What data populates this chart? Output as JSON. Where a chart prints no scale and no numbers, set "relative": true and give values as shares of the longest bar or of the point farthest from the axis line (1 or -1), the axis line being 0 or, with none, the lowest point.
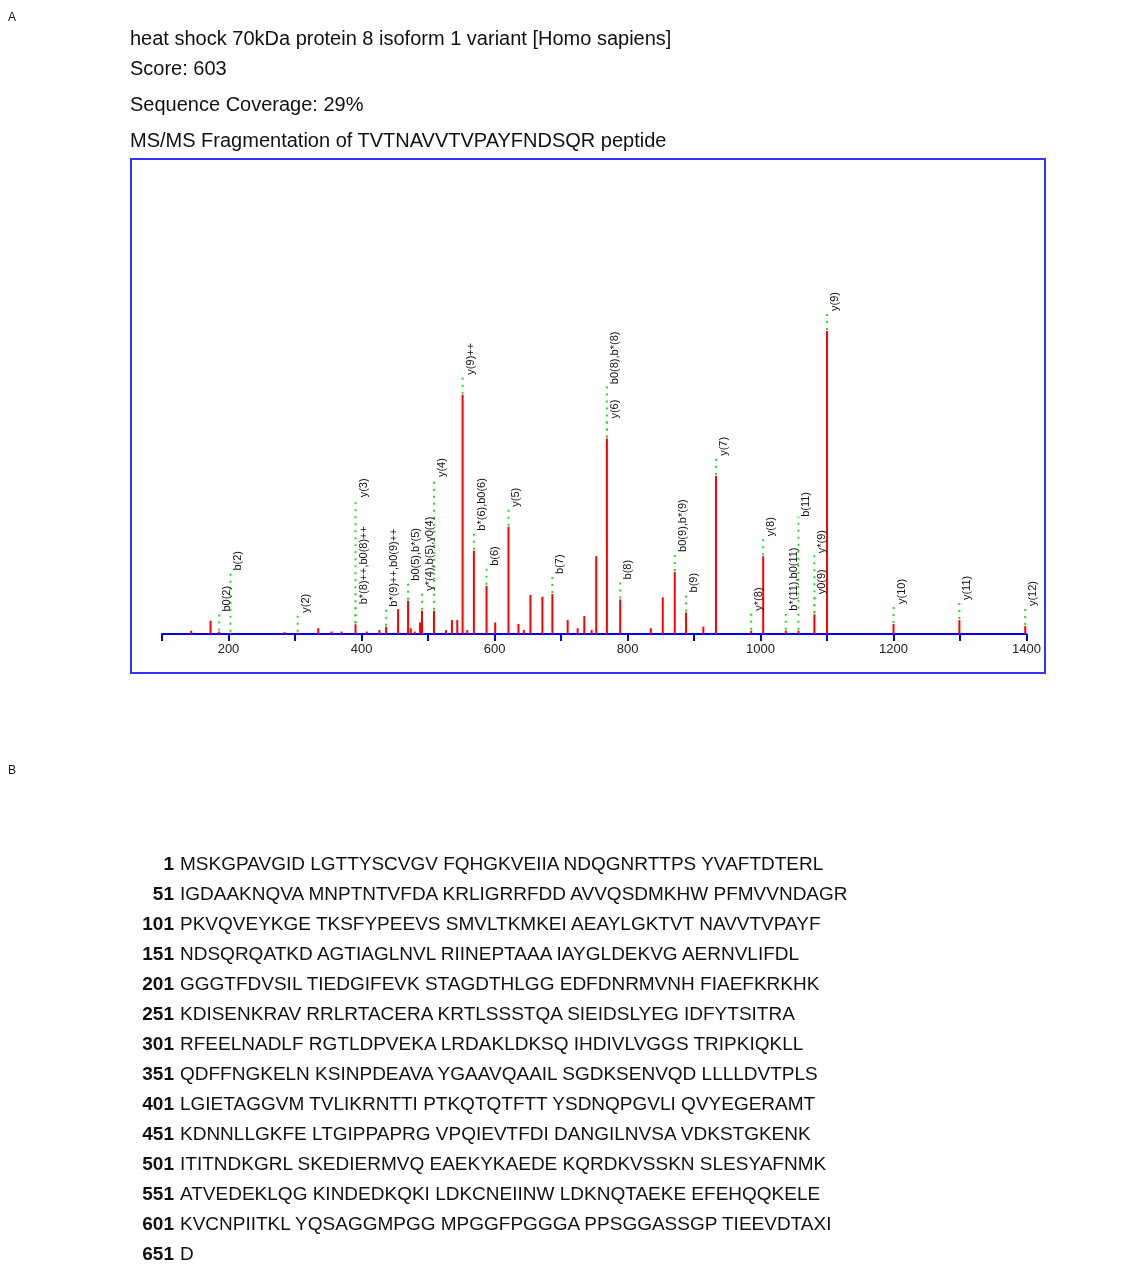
{
  "chart_data": {
    "type": "bar",
    "title": "heat shock 70kDa protein 8 isoform 1 variant [Homo sapiens]",
    "relative": true,
    "color": "#ff0000",
    "x": [
      144,
      173,
      186,
      203,
      284,
      304,
      335,
      355,
      370,
      391,
      408,
      427,
      437,
      455,
      470,
      474,
      480,
      488,
      491,
      509,
      527,
      536,
      544,
      552,
      559,
      569,
      588,
      601,
      621,
      636,
      644,
      654,
      672,
      687,
      710,
      725,
      735,
      746,
      753,
      769,
      789,
      835,
      853,
      871,
      888,
      914,
      933,
      986,
      1004,
      1038,
      1057,
      1081,
      1100,
      1200,
      1299,
      1398
    ],
    "values": [
      0.011,
      0.044,
      0.008,
      0.004,
      0.006,
      0.004,
      0.019,
      0.008,
      0.008,
      0.032,
      0.008,
      0.013,
      0.024,
      0.082,
      0.11,
      0.019,
      0.008,
      0.038,
      0.077,
      0.077,
      0.013,
      0.046,
      0.046,
      0.79,
      0.013,
      0.275,
      0.159,
      0.038,
      0.354,
      0.033,
      0.013,
      0.129,
      0.123,
      0.132,
      0.046,
      0.019,
      0.059,
      0.013,
      0.257,
      0.645,
      0.114,
      0.019,
      0.121,
      0.205,
      0.071,
      0.024,
      0.522,
      0.011,
      0.257,
      0.011,
      0.011,
      0.065,
      1,
      0.033,
      0.046,
      0.026
    ],
    "xlim": [
      100,
      1400
    ],
    "xticks": [
      {
        "value": 100,
        "label": null
      },
      200,
      {
        "value": 300,
        "label": null
      },
      400,
      {
        "value": 500,
        "label": null
      },
      600,
      {
        "value": 700,
        "label": null
      },
      800,
      {
        "value": 900,
        "label": null
      },
      1000,
      {
        "value": 1100,
        "label": null
      },
      1200,
      {
        "value": 1300,
        "label": null
      },
      1400
    ],
    "annotations": [
      "A",
      "Score: 603",
      "Sequence Coverage: 29%",
      "MS/MS Fragmentation of TVTNAVVTVPAYFNDSQR peptide",
      {
        "text": "b0(2)",
        "x": 186,
        "y": 0.008
      },
      {
        "text": "b(2)",
        "x": 203,
        "y": 0.004
      },
      {
        "text": "y(2)",
        "x": 304,
        "y": 0.004
      },
      {
        "text": "b*(8)++,b0(8)++",
        "x": 391,
        "y": 0.032
      },
      {
        "text": "y(3)",
        "x": 391,
        "y": 0.032
      },
      {
        "text": "b*(9)++,b0(9)++",
        "x": 437,
        "y": 0.024
      },
      {
        "text": "b0(5),b*(5)",
        "x": 470,
        "y": 0.11
      },
      {
        "text": "y*(4),b(5),y0(4)",
        "x": 491,
        "y": 0.077
      },
      {
        "text": "y(4)",
        "x": 509,
        "y": 0.077
      },
      {
        "text": "y(9)++",
        "x": 552,
        "y": 0.79
      },
      {
        "text": "b*(6),b0(6)",
        "x": 569,
        "y": 0.275
      },
      {
        "text": "b(6)",
        "x": 588,
        "y": 0.159
      },
      {
        "text": "y(5)",
        "x": 621,
        "y": 0.354
      },
      {
        "text": "b(7)",
        "x": 687,
        "y": 0.132
      },
      {
        "text": "y(6)",
        "x": 769,
        "y": 0.645
      },
      {
        "text": "b0(8),b*(8)",
        "x": 769,
        "y": 0.645
      },
      {
        "text": "b(8)",
        "x": 789,
        "y": 0.114
      },
      {
        "text": "b0(9),b*(9)",
        "x": 871,
        "y": 0.205
      },
      {
        "text": "b(9)",
        "x": 888,
        "y": 0.071
      },
      {
        "text": "y(7)",
        "x": 933,
        "y": 0.522
      },
      {
        "text": "y*(8)",
        "x": 986,
        "y": 0.011
      },
      {
        "text": "y(8)",
        "x": 1004,
        "y": 0.257
      },
      {
        "text": "b*(11),b0(11)",
        "x": 1038,
        "y": 0.011
      },
      {
        "text": "b(11)",
        "x": 1057,
        "y": 0.011
      },
      {
        "text": "y0(9)",
        "x": 1081,
        "y": 0.065
      },
      {
        "text": "y*(9)",
        "x": 1081,
        "y": 0.065
      },
      {
        "text": "y(9)",
        "x": 1100,
        "y": 1
      },
      {
        "text": "y(10)",
        "x": 1200,
        "y": 0.033
      },
      {
        "text": "y(11)",
        "x": 1299,
        "y": 0.046
      },
      {
        "text": "y(12)",
        "x": 1398,
        "y": 0.026
      },
      "B",
      "1 MSKGPAVGID LGTTYSCVGV FQHGKVEIIA NDQGNRTTPS YVAFTDTERL",
      "51 IGDAAKNQVA MNPTNTVFDA KRLIGRRFDD AVVQSDMKHW PFMVVNDAGR",
      "101 PKVQVEYKGE TKSFYPEEVS SMVLTKMKEI AEAYLGKTVT NAVVTVPAYF",
      "151 NDSQRQATKD AGTIAGLNVL RIINEPTAAA IAYGLDEKVG AERNVLIFDL",
      "201 GGGTFDVSIL TIEDGIFEVK STAGDTHLGG EDFDNRMVNH FIAEFKRKHK",
      "251 KDISENKRAV RRLRTACERA KRTLSSSTQA SIEIDSLYEG IDFYTSITRA",
      "301 RFEELNADLF RGTLDPVEKA LRDAKLDKSQ IHDIVLVGGS TRIPKIQKLL",
      "351 QDFFNGKELN KSINPDEAVA YGAAVQAAIL SGDKSENVQD LLLLDVTPLS",
      "401 LGIETAGGVM TVLIKRNTTI PTKQTQTFTT YSDNQPGVLI QVYEGERAMT",
      "451 KDNNLLGKFE LTGIPPAPRG VPQIEVTFDI DANGILNVSA VDKSTGKENK",
      "501 ITITNDKGRL SKEDIERMVQ EAEKYKAEDE KQRDKVSSKN SLESYAFNMK",
      "551 ATVEDEKLQG KINDEDKQKI LDKCNEIINW LDKNQTAEKE EFEHQQKELE",
      "601 KVCNPIITKL YQSAGGMPGG MPGGFPGGGA PPSGGASSGP TIEEVDTAXI",
      "651 D"
    ]
  }
}
